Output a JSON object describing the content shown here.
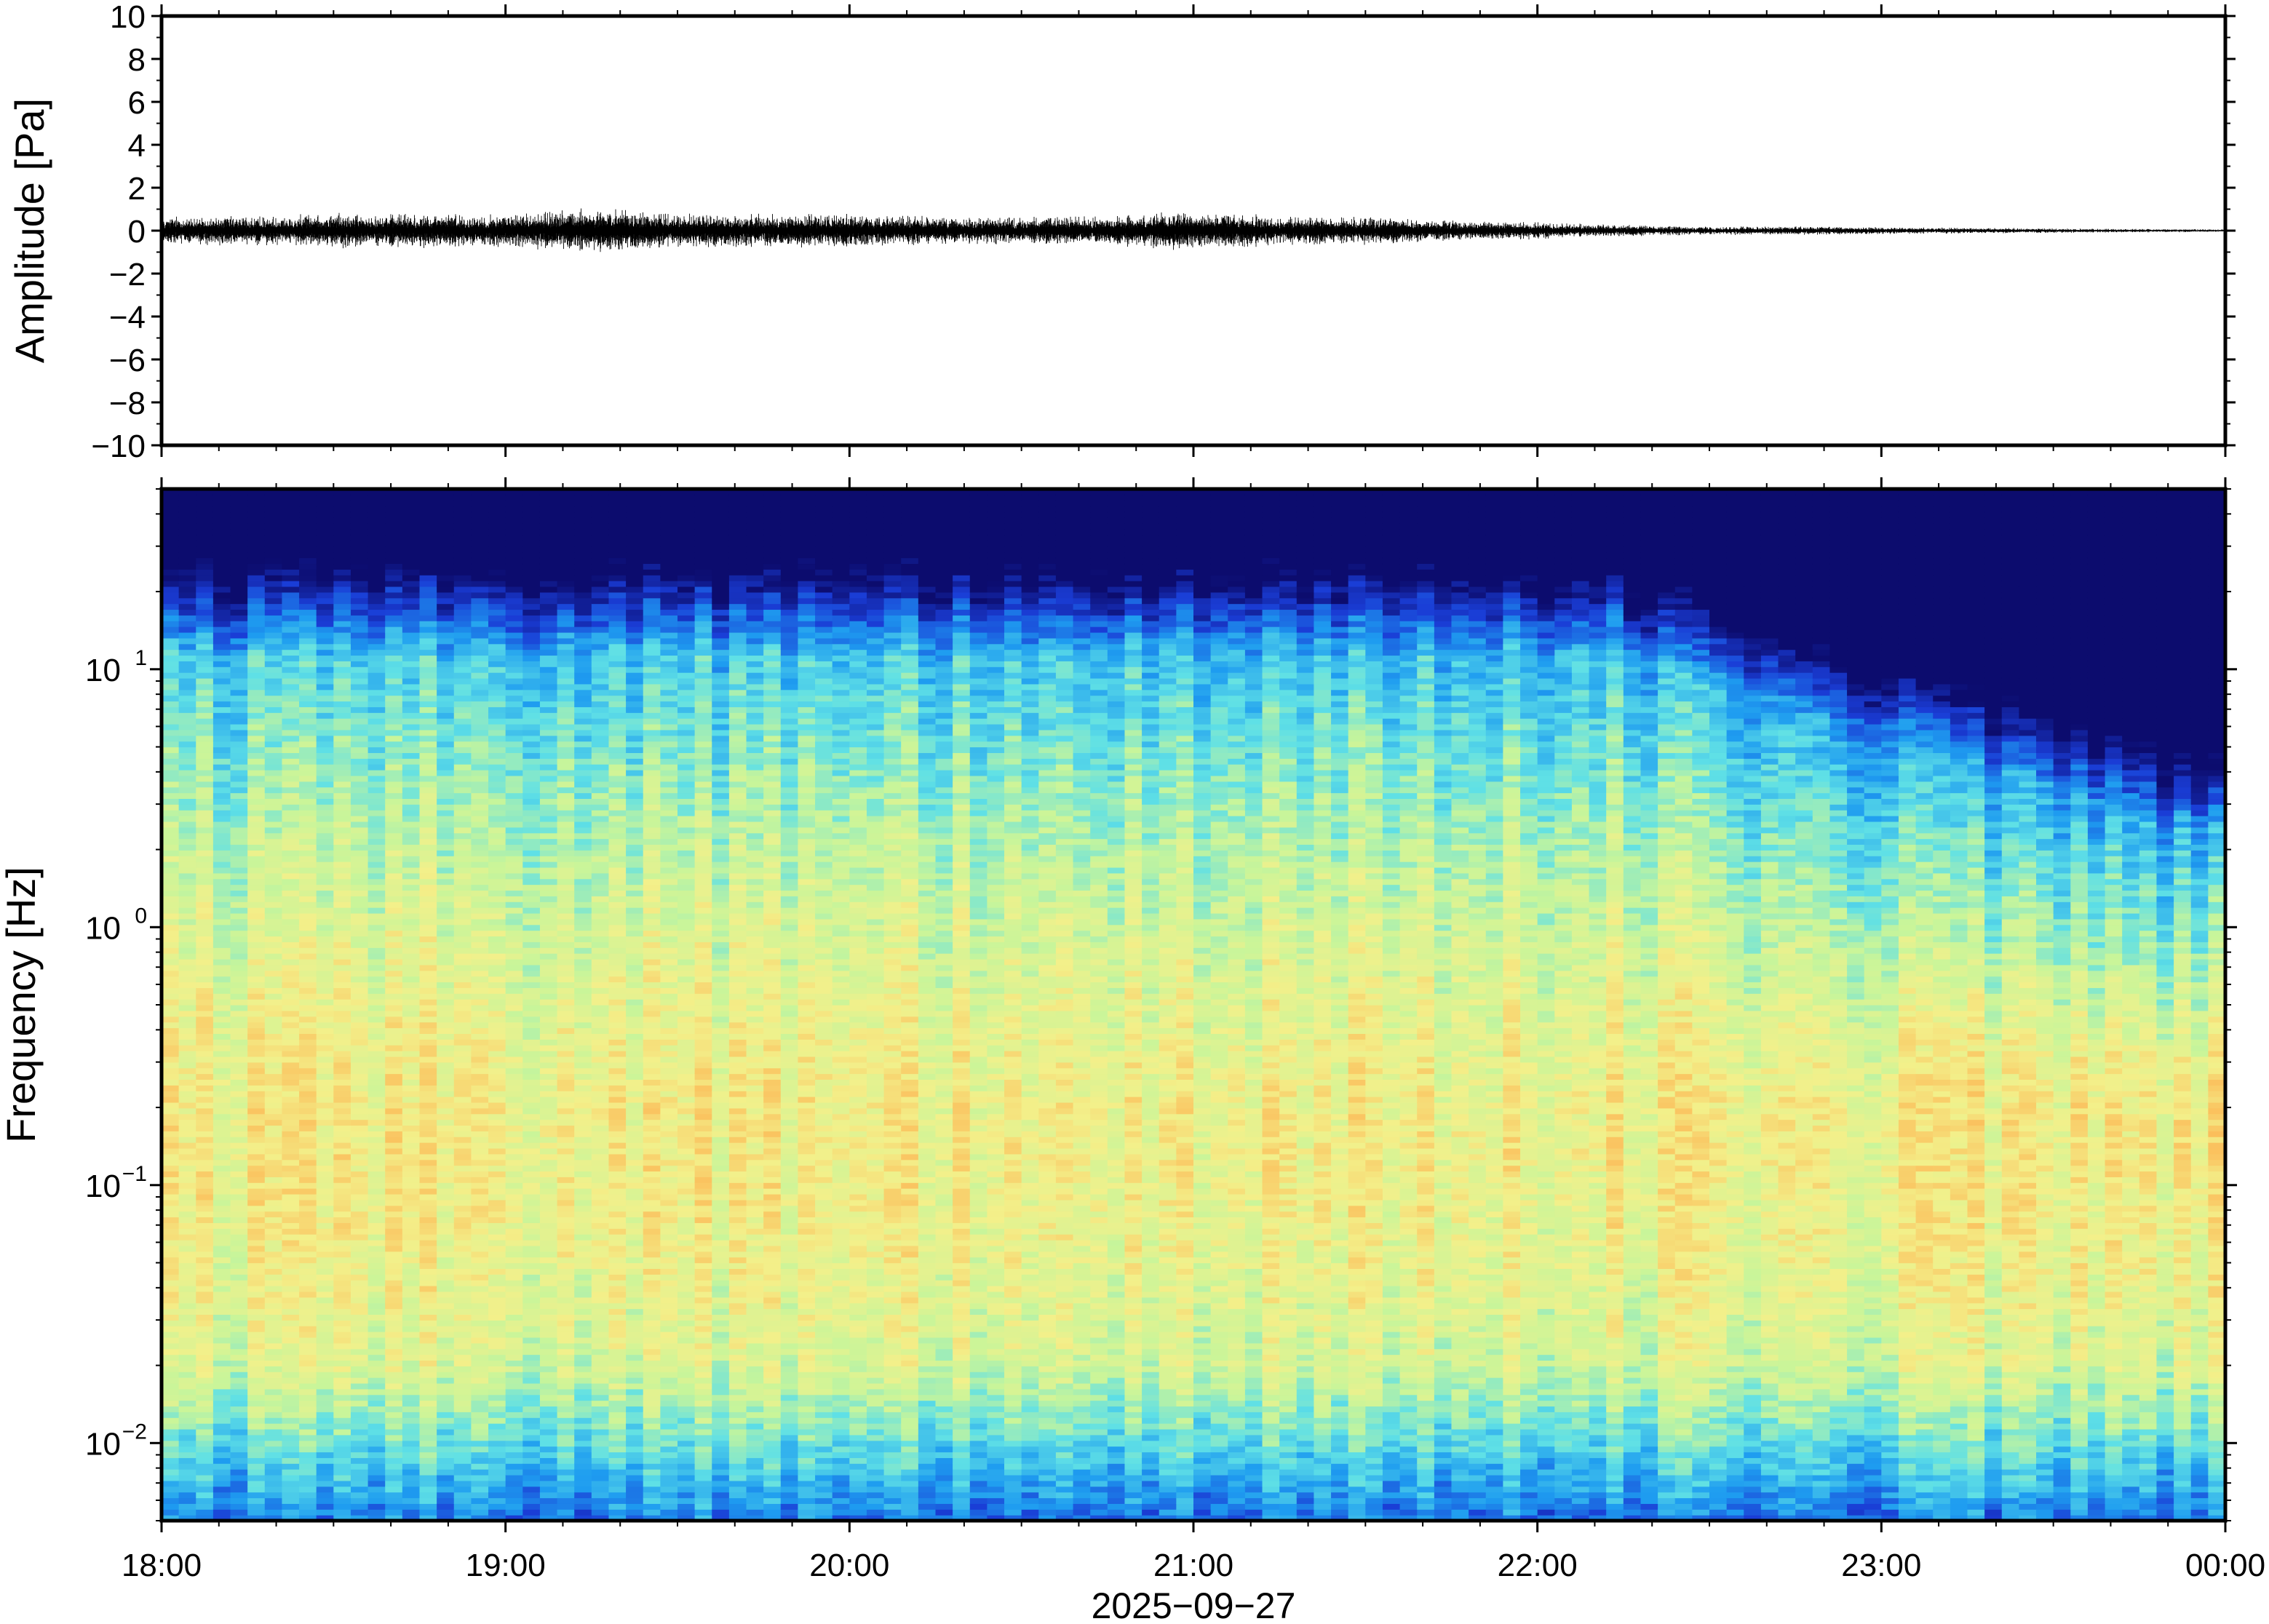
{
  "chart_data": [
    {
      "type": "line",
      "ylabel": "Amplitude [Pa]",
      "ylim": [
        -10,
        10
      ],
      "yticks": [
        -10,
        -8,
        -6,
        -4,
        -2,
        0,
        2,
        4,
        6,
        8,
        10
      ],
      "ytick_labels": [
        "−10",
        "−8",
        "−6",
        "−4",
        "−2",
        "0",
        "2",
        "4",
        "6",
        "8",
        "10"
      ],
      "xlim_hours": [
        18,
        24
      ],
      "envelope": {
        "times_h": [
          18.0,
          18.25,
          18.5,
          18.75,
          19.0,
          19.25,
          19.5,
          19.75,
          20.0,
          20.25,
          20.5,
          20.75,
          21.0,
          21.25,
          21.5,
          21.75,
          22.0,
          22.25,
          22.5,
          22.75,
          23.0,
          23.25,
          23.5,
          23.75,
          24.0
        ],
        "amplitude": [
          0.5,
          0.5,
          0.6,
          0.6,
          0.6,
          0.8,
          0.6,
          0.6,
          0.6,
          0.5,
          0.5,
          0.5,
          0.7,
          0.5,
          0.5,
          0.35,
          0.3,
          0.2,
          0.15,
          0.15,
          0.12,
          0.1,
          0.08,
          0.06,
          0.05
        ]
      },
      "grid": false
    },
    {
      "type": "heatmap",
      "ylabel": "Frequency [Hz]",
      "yscale": "log",
      "ylim": [
        0.005,
        50
      ],
      "yticks": [
        0.01,
        0.1,
        1,
        10
      ],
      "ytick_labels": [
        {
          "base": "10",
          "exp": "−2"
        },
        {
          "base": "10",
          "exp": "−1"
        },
        {
          "base": "10",
          "exp": "0"
        },
        {
          "base": "10",
          "exp": "1"
        }
      ],
      "xlabel": "2025−09−27",
      "xtick_labels": [
        "18:00",
        "19:00",
        "20:00",
        "21:00",
        "22:00",
        "23:00",
        "00:00"
      ],
      "colormap": [
        "#0c0c6e",
        "#1a3dd6",
        "#1e9cf0",
        "#5fe0e6",
        "#c8f59a",
        "#f3f08a",
        "#fbbf5c",
        "#f08a3c"
      ],
      "note_values": {
        "peak_band_hz": 0.19,
        "upper_cutoff_hz_start": 25,
        "upper_cutoff_hz_end": 5
      },
      "grid": false
    }
  ]
}
